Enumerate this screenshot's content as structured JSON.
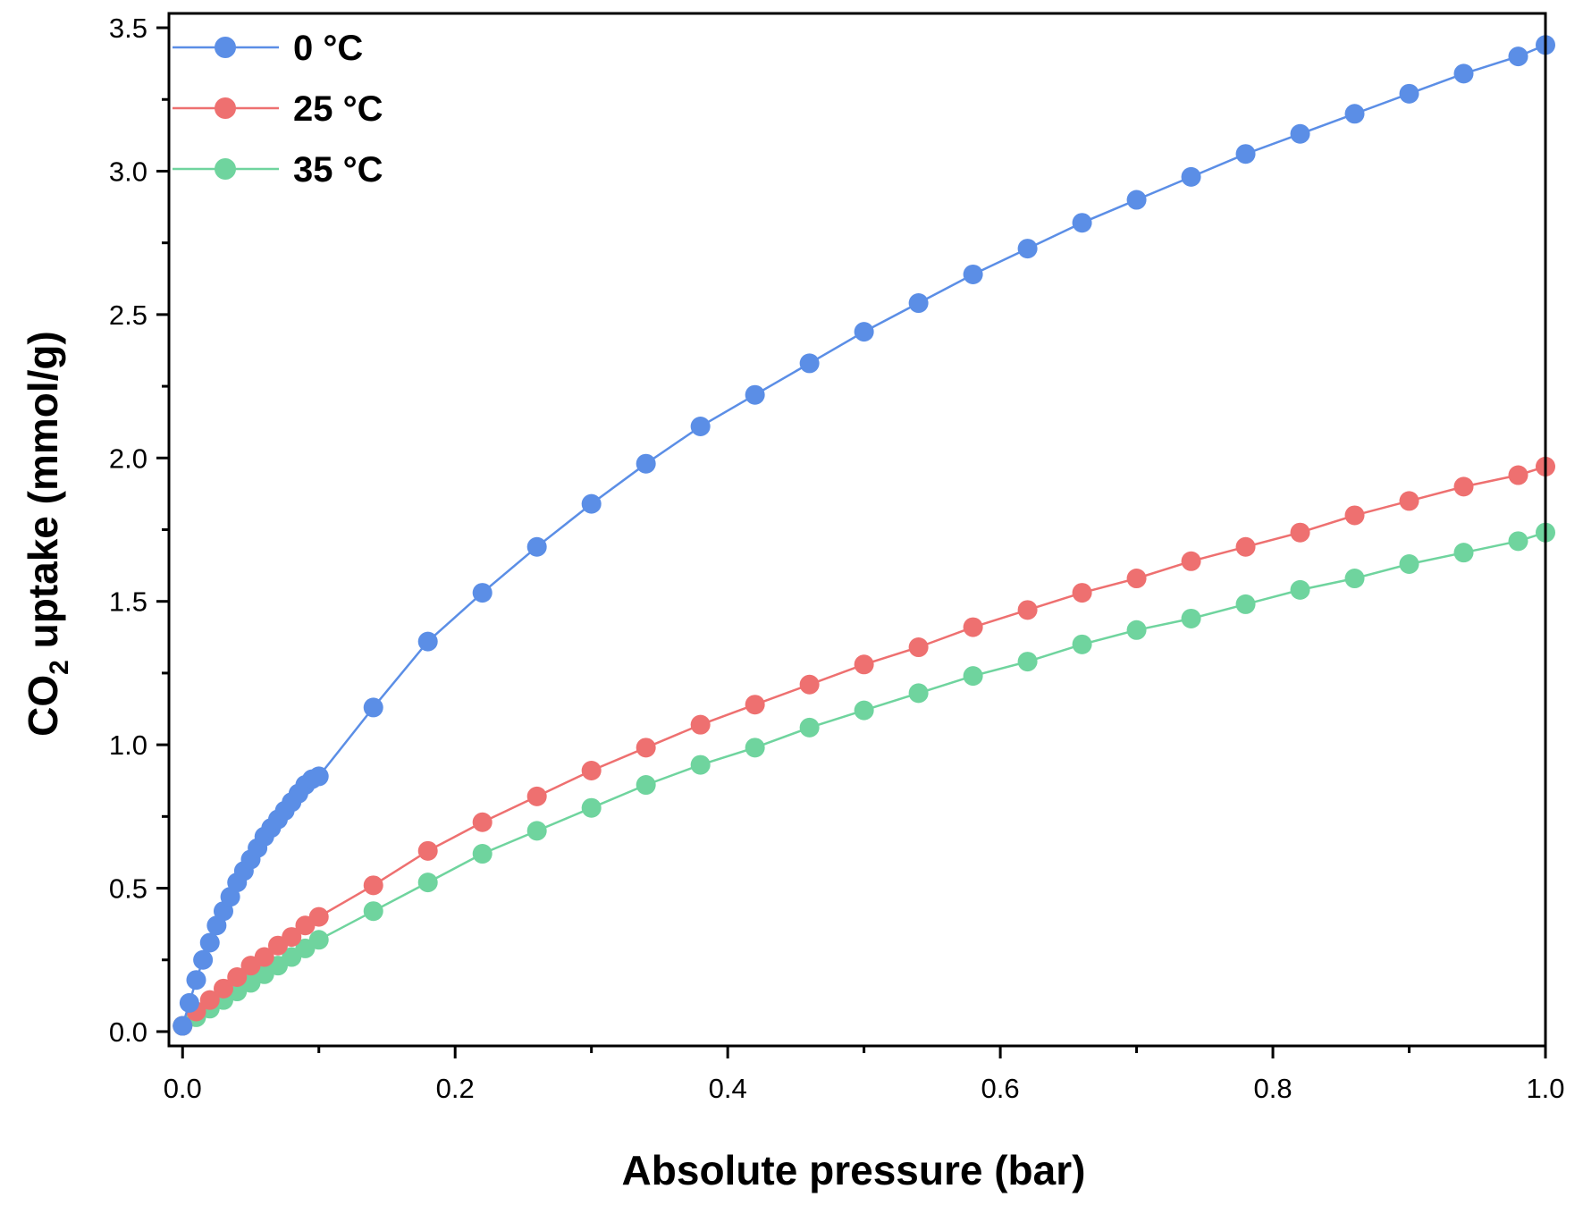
{
  "chart_data": {
    "type": "line",
    "title": "",
    "xlabel": "Absolute pressure (bar)",
    "ylabel_parts": {
      "prefix": "CO",
      "subscript": "2",
      "suffix": " uptake (mmol/g)"
    },
    "xlim": [
      -0.01,
      1.0
    ],
    "ylim": [
      -0.05,
      3.55
    ],
    "x_ticks": [
      "0.0",
      "0.2",
      "0.4",
      "0.6",
      "0.8",
      "1.0"
    ],
    "y_ticks": [
      "0.0",
      "0.5",
      "1.0",
      "1.5",
      "2.0",
      "2.5",
      "3.0",
      "3.5"
    ],
    "legend_position": "top-left",
    "series": [
      {
        "name": "0 °C",
        "color": "#5b8ee6",
        "x": [
          0.0,
          0.005,
          0.01,
          0.015,
          0.02,
          0.025,
          0.03,
          0.035,
          0.04,
          0.045,
          0.05,
          0.055,
          0.06,
          0.065,
          0.07,
          0.075,
          0.08,
          0.085,
          0.09,
          0.095,
          0.1,
          0.14,
          0.18,
          0.22,
          0.26,
          0.3,
          0.34,
          0.38,
          0.42,
          0.46,
          0.5,
          0.54,
          0.58,
          0.62,
          0.66,
          0.7,
          0.74,
          0.78,
          0.82,
          0.86,
          0.9,
          0.94,
          0.98,
          1.0
        ],
        "y": [
          0.02,
          0.1,
          0.18,
          0.25,
          0.31,
          0.37,
          0.42,
          0.47,
          0.52,
          0.56,
          0.6,
          0.64,
          0.68,
          0.71,
          0.74,
          0.77,
          0.8,
          0.83,
          0.86,
          0.88,
          0.89,
          1.13,
          1.36,
          1.53,
          1.69,
          1.84,
          1.98,
          2.11,
          2.22,
          2.33,
          2.44,
          2.54,
          2.64,
          2.73,
          2.82,
          2.9,
          2.98,
          3.06,
          3.13,
          3.2,
          3.27,
          3.34,
          3.4,
          3.44
        ]
      },
      {
        "name": "25 °C",
        "color": "#ee7070",
        "x": [
          0.0,
          0.01,
          0.02,
          0.03,
          0.04,
          0.05,
          0.06,
          0.07,
          0.08,
          0.09,
          0.1,
          0.14,
          0.18,
          0.22,
          0.26,
          0.3,
          0.34,
          0.38,
          0.42,
          0.46,
          0.5,
          0.54,
          0.58,
          0.62,
          0.66,
          0.7,
          0.74,
          0.78,
          0.82,
          0.86,
          0.9,
          0.94,
          0.98,
          1.0
        ],
        "y": [
          0.02,
          0.07,
          0.11,
          0.15,
          0.19,
          0.23,
          0.26,
          0.3,
          0.33,
          0.37,
          0.4,
          0.51,
          0.63,
          0.73,
          0.82,
          0.91,
          0.99,
          1.07,
          1.14,
          1.21,
          1.28,
          1.34,
          1.41,
          1.47,
          1.53,
          1.58,
          1.64,
          1.69,
          1.74,
          1.8,
          1.85,
          1.9,
          1.94,
          1.97
        ]
      },
      {
        "name": "35 °C",
        "color": "#6fd49e",
        "x": [
          0.0,
          0.01,
          0.02,
          0.03,
          0.04,
          0.05,
          0.06,
          0.07,
          0.08,
          0.09,
          0.1,
          0.14,
          0.18,
          0.22,
          0.26,
          0.3,
          0.34,
          0.38,
          0.42,
          0.46,
          0.5,
          0.54,
          0.58,
          0.62,
          0.66,
          0.7,
          0.74,
          0.78,
          0.82,
          0.86,
          0.9,
          0.94,
          0.98,
          1.0
        ],
        "y": [
          0.02,
          0.05,
          0.08,
          0.11,
          0.14,
          0.17,
          0.2,
          0.23,
          0.26,
          0.29,
          0.32,
          0.42,
          0.52,
          0.62,
          0.7,
          0.78,
          0.86,
          0.93,
          0.99,
          1.06,
          1.12,
          1.18,
          1.24,
          1.29,
          1.35,
          1.4,
          1.44,
          1.49,
          1.54,
          1.58,
          1.63,
          1.67,
          1.71,
          1.74
        ]
      }
    ]
  }
}
